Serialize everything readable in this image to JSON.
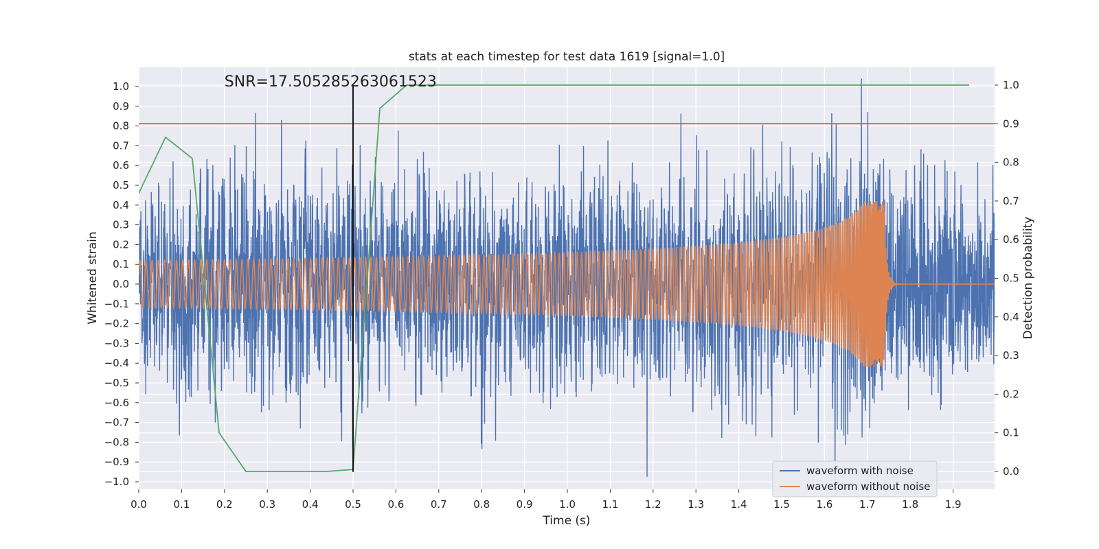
{
  "chart_data": {
    "type": "line",
    "title": "stats at each timestep for test data 1619 [signal=1.0]",
    "xlabel": "Time (s)",
    "ylabel_left": "Whitened strain",
    "ylabel_right": "Detection probability",
    "xlim": [
      0.0,
      2.0
    ],
    "ylim_left": [
      -1.05,
      1.05
    ],
    "ylim_right": [
      -0.05,
      1.05
    ],
    "x_ticks": [
      "0.0",
      "0.1",
      "0.2",
      "0.3",
      "0.4",
      "0.5",
      "0.6",
      "0.7",
      "0.8",
      "0.9",
      "1.0",
      "1.1",
      "1.2",
      "1.3",
      "1.4",
      "1.5",
      "1.6",
      "1.7",
      "1.8",
      "1.9"
    ],
    "y_left_ticks": [
      "1.0",
      "0.9",
      "0.8",
      "0.7",
      "0.6",
      "0.5",
      "0.4",
      "0.3",
      "0.2",
      "0.1",
      "0.0",
      "−0.1",
      "−0.2",
      "−0.3",
      "−0.4",
      "−0.5",
      "−0.6",
      "−0.7",
      "−0.8",
      "−0.9",
      "−1.0"
    ],
    "y_right_ticks": [
      "1.0",
      "0.9",
      "0.8",
      "0.7",
      "0.6",
      "0.5",
      "0.4",
      "0.3",
      "0.2",
      "0.1",
      "0.0"
    ],
    "grid": true,
    "legend_position": "lower-right",
    "annotation": {
      "text": "SNR=17.505285263061523",
      "x": 0.2,
      "y": 1.0
    },
    "vertical_marker": {
      "x": 0.5,
      "y_from": -0.95,
      "y_to": 1.0,
      "color": "#000000"
    },
    "threshold_line": {
      "y_right": 0.9,
      "color": "#c44e52",
      "axis": "right"
    },
    "series": [
      {
        "name": "waveform with noise",
        "color": "#4c72b0",
        "axis": "left",
        "kind": "noisy-strain",
        "x_range": [
          0.0,
          2.0
        ]
      },
      {
        "name": "waveform without noise",
        "color": "#dd8452",
        "axis": "left",
        "kind": "chirp",
        "x_range": [
          0.0,
          2.0
        ],
        "merger_time": 1.74
      },
      {
        "color": "#55a868",
        "axis": "right",
        "x": [
          0.0,
          0.0625,
          0.125,
          0.1875,
          0.25,
          0.3125,
          0.375,
          0.4375,
          0.5,
          0.5625,
          0.625,
          0.6875,
          0.75,
          1.0,
          1.5,
          1.9375
        ],
        "y": [
          0.72,
          0.865,
          0.81,
          0.1,
          0.0,
          0.0,
          0.0,
          0.0,
          0.005,
          0.94,
          1.0,
          1.0,
          1.0,
          1.0,
          1.0,
          1.0
        ]
      }
    ]
  },
  "colors": {
    "background": "#eaeaf2",
    "grid": "#ffffff"
  }
}
